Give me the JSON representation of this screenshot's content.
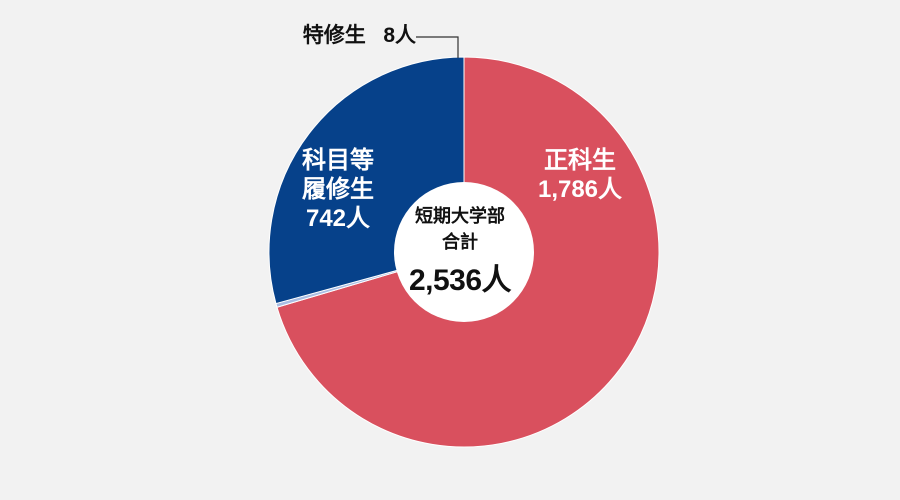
{
  "chart_data": {
    "type": "pie",
    "donut": true,
    "slices": [
      {
        "key": "regular",
        "label": "正科生",
        "value": 1786,
        "value_text": "1,786人",
        "color": "#d9505e"
      },
      {
        "key": "special",
        "label": "特修生",
        "value": 8,
        "value_text": "8人",
        "color": "#a9bde3"
      },
      {
        "key": "credit",
        "label_lines": [
          "科目等",
          "履修生"
        ],
        "value": 742,
        "value_text": "742人",
        "color": "#06418a"
      }
    ],
    "center": {
      "title_lines": [
        "短期大学部",
        "合計"
      ],
      "total_text": "2,536人"
    },
    "background": "#f2f2f2",
    "center_color": "#ffffff",
    "leader_line_color": "#333333"
  }
}
